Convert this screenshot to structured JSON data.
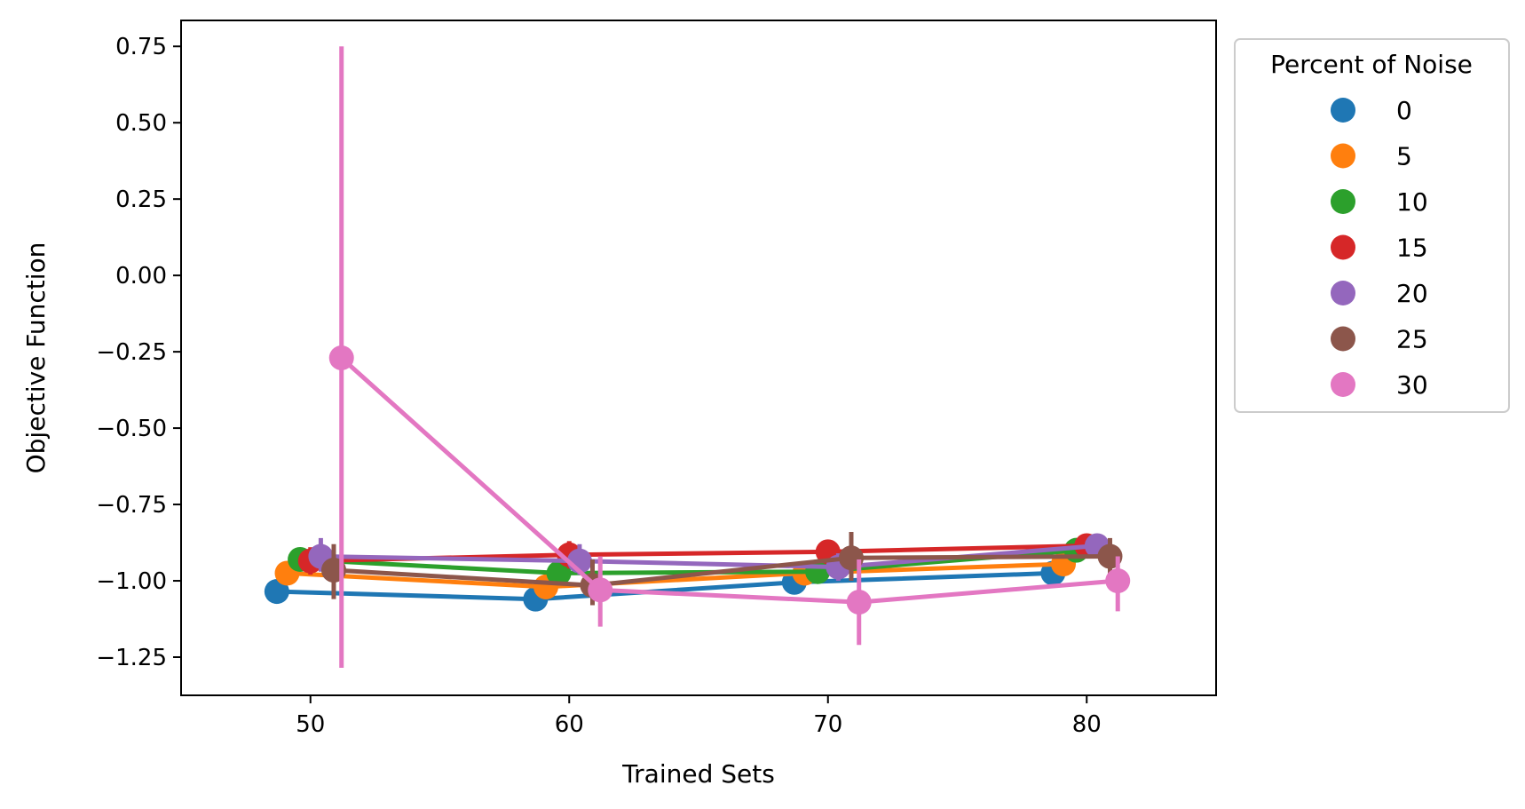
{
  "chart_data": {
    "type": "line",
    "xlabel": "Trained Sets",
    "ylabel": "Objective Function",
    "xlim": [
      45,
      85
    ],
    "ylim": [
      -1.375,
      0.835
    ],
    "xticks": [
      {
        "value": 50,
        "label": "50"
      },
      {
        "value": 60,
        "label": "60"
      },
      {
        "value": 70,
        "label": "70"
      },
      {
        "value": 80,
        "label": "80"
      }
    ],
    "yticks": [
      {
        "value": 0.75,
        "label": "0.75"
      },
      {
        "value": 0.5,
        "label": "0.50"
      },
      {
        "value": 0.25,
        "label": "0.25"
      },
      {
        "value": 0.0,
        "label": "0.00"
      },
      {
        "value": -0.25,
        "label": "−0.25"
      },
      {
        "value": -0.5,
        "label": "−0.50"
      },
      {
        "value": -0.75,
        "label": "−0.75"
      },
      {
        "value": -1.0,
        "label": "−1.00"
      },
      {
        "value": -1.25,
        "label": "−1.25"
      }
    ],
    "legend": {
      "title": "Percent of Noise",
      "placement": "outside-right"
    },
    "series": [
      {
        "name": "0",
        "color": "#1f77b4",
        "points": [
          {
            "x": 48.7,
            "y": -1.035,
            "lo": -1.075,
            "hi": -0.995
          },
          {
            "x": 58.7,
            "y": -1.06,
            "lo": -1.1,
            "hi": -1.02
          },
          {
            "x": 68.7,
            "y": -1.005,
            "lo": -1.04,
            "hi": -0.97
          },
          {
            "x": 78.7,
            "y": -0.975,
            "lo": -1.01,
            "hi": -0.94
          }
        ]
      },
      {
        "name": "5",
        "color": "#ff7f0e",
        "points": [
          {
            "x": 49.1,
            "y": -0.975,
            "lo": -1.01,
            "hi": -0.94
          },
          {
            "x": 59.1,
            "y": -1.02,
            "lo": -1.06,
            "hi": -0.98
          },
          {
            "x": 69.1,
            "y": -0.975,
            "lo": -1.01,
            "hi": -0.94
          },
          {
            "x": 79.1,
            "y": -0.945,
            "lo": -0.98,
            "hi": -0.91
          }
        ]
      },
      {
        "name": "10",
        "color": "#2ca02c",
        "points": [
          {
            "x": 49.6,
            "y": -0.93,
            "lo": -0.96,
            "hi": -0.9
          },
          {
            "x": 59.6,
            "y": -0.975,
            "lo": -1.01,
            "hi": -0.94
          },
          {
            "x": 69.6,
            "y": -0.97,
            "lo": -1.0,
            "hi": -0.94
          },
          {
            "x": 79.6,
            "y": -0.9,
            "lo": -0.93,
            "hi": -0.87
          }
        ]
      },
      {
        "name": "15",
        "color": "#d62728",
        "points": [
          {
            "x": 50.0,
            "y": -0.935,
            "lo": -0.98,
            "hi": -0.89
          },
          {
            "x": 60.0,
            "y": -0.915,
            "lo": -0.96,
            "hi": -0.87
          },
          {
            "x": 70.0,
            "y": -0.905,
            "lo": -0.94,
            "hi": -0.87
          },
          {
            "x": 80.0,
            "y": -0.885,
            "lo": -0.92,
            "hi": -0.85
          }
        ]
      },
      {
        "name": "20",
        "color": "#9467bd",
        "points": [
          {
            "x": 50.4,
            "y": -0.92,
            "lo": -0.97,
            "hi": -0.86
          },
          {
            "x": 60.4,
            "y": -0.935,
            "lo": -0.98,
            "hi": -0.88
          },
          {
            "x": 70.4,
            "y": -0.955,
            "lo": -1.0,
            "hi": -0.91
          },
          {
            "x": 80.4,
            "y": -0.885,
            "lo": -0.92,
            "hi": -0.85
          }
        ]
      },
      {
        "name": "25",
        "color": "#8c564b",
        "points": [
          {
            "x": 50.9,
            "y": -0.965,
            "lo": -1.06,
            "hi": -0.88
          },
          {
            "x": 60.9,
            "y": -1.015,
            "lo": -1.08,
            "hi": -0.93
          },
          {
            "x": 70.9,
            "y": -0.925,
            "lo": -1.0,
            "hi": -0.84
          },
          {
            "x": 80.9,
            "y": -0.92,
            "lo": -0.98,
            "hi": -0.86
          }
        ]
      },
      {
        "name": "30",
        "color": "#e377c2",
        "points": [
          {
            "x": 51.2,
            "y": -0.27,
            "lo": -1.285,
            "hi": 0.75
          },
          {
            "x": 61.2,
            "y": -1.03,
            "lo": -1.15,
            "hi": -0.92
          },
          {
            "x": 71.2,
            "y": -1.07,
            "lo": -1.21,
            "hi": -0.93
          },
          {
            "x": 81.2,
            "y": -1.0,
            "lo": -1.1,
            "hi": -0.92
          }
        ]
      }
    ]
  }
}
